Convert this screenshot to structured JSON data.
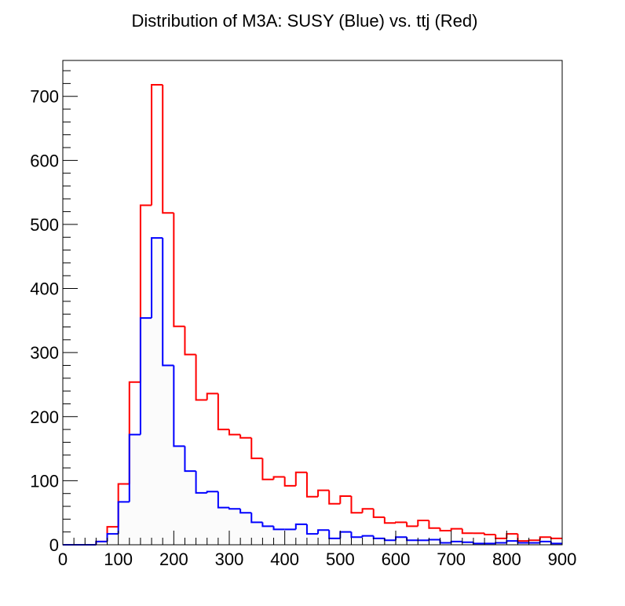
{
  "chart_data": {
    "type": "histogram",
    "title": "Distribution of M3A: SUSY (Blue) vs. ttj (Red)",
    "xlabel": "",
    "ylabel": "",
    "xlim": [
      0,
      900
    ],
    "ylim": [
      0,
      756
    ],
    "xticks": [
      0,
      100,
      200,
      300,
      400,
      500,
      600,
      700,
      800,
      900
    ],
    "yticks": [
      0,
      100,
      200,
      300,
      400,
      500,
      600,
      700
    ],
    "bin_edges_start": 0,
    "bin_width": 20,
    "grid": false,
    "legend": "none",
    "series": [
      {
        "color": "#ff0000",
        "values": [
          0,
          0,
          0,
          5,
          28,
          95,
          254,
          530,
          718,
          518,
          341,
          297,
          226,
          236,
          180,
          172,
          167,
          135,
          102,
          106,
          92,
          113,
          75,
          85,
          64,
          76,
          50,
          56,
          43,
          34,
          35,
          29,
          38,
          26,
          22,
          25,
          18,
          18,
          16,
          10,
          17,
          6,
          7,
          12,
          10
        ]
      },
      {
        "color": "#0000ff",
        "values": [
          0,
          0,
          0,
          5,
          17,
          67,
          172,
          354,
          479,
          280,
          154,
          115,
          81,
          83,
          58,
          56,
          50,
          35,
          29,
          24,
          24,
          32,
          17,
          23,
          10,
          20,
          12,
          14,
          10,
          7,
          12,
          7,
          7,
          8,
          3,
          5,
          4,
          2,
          2,
          3,
          6,
          3,
          3,
          5,
          2
        ]
      }
    ]
  }
}
